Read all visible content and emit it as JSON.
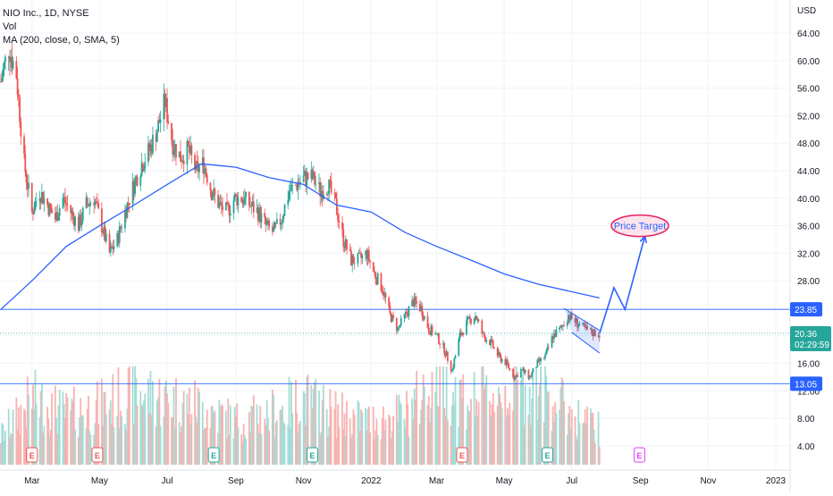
{
  "legend": {
    "symbol_line": "NIO Inc., 1D, NYSE",
    "vol_line": "Vol",
    "ma_line": "MA (200, close, 0, SMA, 5)"
  },
  "annotation": {
    "text": "Price Target"
  },
  "chart_data": {
    "type": "candlestick",
    "currency": "USD",
    "y_ticks": [
      4,
      8,
      12,
      16,
      20,
      24,
      28,
      32,
      36,
      40,
      44,
      48,
      52,
      56,
      60,
      64
    ],
    "y_tick_labels": [
      "4.00",
      "8.00",
      "12.00",
      "16.00",
      "20.00",
      "24.00",
      "28.00",
      "32.00",
      "36.00",
      "40.00",
      "44.00",
      "48.00",
      "52.00",
      "56.00",
      "60.00",
      "64.00"
    ],
    "x_ticks": [
      "Mar",
      "May",
      "Jul",
      "Sep",
      "Nov",
      "2022",
      "Mar",
      "May",
      "Jul",
      "Sep",
      "Nov",
      "2023"
    ],
    "horizontal_levels": [
      {
        "value": 23.85,
        "label": "23.85",
        "color": "#2962ff"
      },
      {
        "value": 13.05,
        "label": "13.05",
        "color": "#2962ff"
      }
    ],
    "last_price": {
      "value": 20.36,
      "label": "20.36",
      "countdown": "02:29:59",
      "color": "#26a69a"
    },
    "close_path": [
      [
        "2021-02-01",
        57
      ],
      [
        "2021-02-08",
        62
      ],
      [
        "2021-02-15",
        58
      ],
      [
        "2021-02-22",
        45
      ],
      [
        "2021-03-01",
        38
      ],
      [
        "2021-03-08",
        41
      ],
      [
        "2021-03-15",
        39
      ],
      [
        "2021-03-22",
        37
      ],
      [
        "2021-03-29",
        40
      ],
      [
        "2021-04-05",
        38
      ],
      [
        "2021-04-12",
        36
      ],
      [
        "2021-04-19",
        39
      ],
      [
        "2021-04-26",
        40
      ],
      [
        "2021-05-03",
        36
      ],
      [
        "2021-05-10",
        32
      ],
      [
        "2021-05-17",
        34
      ],
      [
        "2021-05-24",
        38
      ],
      [
        "2021-06-01",
        42
      ],
      [
        "2021-06-08",
        45
      ],
      [
        "2021-06-15",
        47
      ],
      [
        "2021-06-22",
        50
      ],
      [
        "2021-06-29",
        54
      ],
      [
        "2021-07-06",
        48
      ],
      [
        "2021-07-13",
        46
      ],
      [
        "2021-07-20",
        47
      ],
      [
        "2021-07-27",
        44
      ],
      [
        "2021-08-03",
        45
      ],
      [
        "2021-08-10",
        41
      ],
      [
        "2021-08-17",
        39
      ],
      [
        "2021-08-24",
        38
      ],
      [
        "2021-08-31",
        40
      ],
      [
        "2021-09-07",
        40
      ],
      [
        "2021-09-14",
        39
      ],
      [
        "2021-09-21",
        38
      ],
      [
        "2021-09-28",
        36
      ],
      [
        "2021-10-05",
        35
      ],
      [
        "2021-10-12",
        37
      ],
      [
        "2021-10-19",
        41
      ],
      [
        "2021-10-26",
        42
      ],
      [
        "2021-11-02",
        43
      ],
      [
        "2021-11-09",
        43
      ],
      [
        "2021-11-16",
        41
      ],
      [
        "2021-11-23",
        42
      ],
      [
        "2021-11-30",
        39
      ],
      [
        "2021-12-07",
        34
      ],
      [
        "2021-12-14",
        31
      ],
      [
        "2021-12-21",
        31
      ],
      [
        "2021-12-28",
        32
      ],
      [
        "2022-01-04",
        29
      ],
      [
        "2022-01-11",
        27
      ],
      [
        "2022-01-18",
        23
      ],
      [
        "2022-01-25",
        21
      ],
      [
        "2022-02-01",
        23
      ],
      [
        "2022-02-08",
        25
      ],
      [
        "2022-02-15",
        24
      ],
      [
        "2022-02-22",
        21
      ],
      [
        "2022-03-01",
        20
      ],
      [
        "2022-03-08",
        18
      ],
      [
        "2022-03-15",
        15
      ],
      [
        "2022-03-22",
        20
      ],
      [
        "2022-03-29",
        22
      ],
      [
        "2022-04-05",
        23
      ],
      [
        "2022-04-12",
        20
      ],
      [
        "2022-04-19",
        19
      ],
      [
        "2022-04-26",
        17
      ],
      [
        "2022-05-03",
        16
      ],
      [
        "2022-05-10",
        14
      ],
      [
        "2022-05-17",
        15
      ],
      [
        "2022-05-24",
        14
      ],
      [
        "2022-05-31",
        16
      ],
      [
        "2022-06-07",
        17
      ],
      [
        "2022-06-14",
        20
      ],
      [
        "2022-06-21",
        21
      ],
      [
        "2022-06-28",
        23
      ],
      [
        "2022-07-05",
        22
      ],
      [
        "2022-07-12",
        21
      ],
      [
        "2022-07-19",
        20.5
      ],
      [
        "2022-07-26",
        20.36
      ]
    ],
    "volume_path": [
      [
        "2021-02-01",
        4
      ],
      [
        "2021-03-01",
        9
      ],
      [
        "2021-04-01",
        7
      ],
      [
        "2021-05-01",
        8
      ],
      [
        "2021-06-01",
        10
      ],
      [
        "2021-07-01",
        9
      ],
      [
        "2021-08-01",
        8
      ],
      [
        "2021-09-01",
        6
      ],
      [
        "2021-10-01",
        7
      ],
      [
        "2021-11-01",
        9
      ],
      [
        "2021-12-01",
        7
      ],
      [
        "2022-01-01",
        6
      ],
      [
        "2022-02-01",
        7
      ],
      [
        "2022-03-01",
        12
      ],
      [
        "2022-04-01",
        9
      ],
      [
        "2022-05-01",
        10
      ],
      [
        "2022-06-01",
        11
      ],
      [
        "2022-07-01",
        7
      ],
      [
        "2022-07-26",
        5
      ]
    ],
    "sma_200": [
      [
        "2021-02-01",
        23.85
      ],
      [
        "2021-03-01",
        28
      ],
      [
        "2021-04-01",
        33
      ],
      [
        "2021-05-01",
        36
      ],
      [
        "2021-06-01",
        39
      ],
      [
        "2021-07-01",
        42
      ],
      [
        "2021-08-01",
        45
      ],
      [
        "2021-09-01",
        44.5
      ],
      [
        "2021-10-01",
        43
      ],
      [
        "2021-11-01",
        42
      ],
      [
        "2021-12-01",
        39
      ],
      [
        "2022-01-01",
        38
      ],
      [
        "2022-02-01",
        35
      ],
      [
        "2022-03-01",
        33
      ],
      [
        "2022-04-01",
        31
      ],
      [
        "2022-05-01",
        29
      ],
      [
        "2022-06-01",
        27.5
      ],
      [
        "2022-07-26",
        25.5
      ]
    ],
    "earnings": [
      "2021-03-01",
      "2021-04-29",
      "2021-08-12",
      "2021-11-09",
      "2022-03-24",
      "2022-06-09",
      "2022-08-31"
    ],
    "channel": {
      "upper": [
        [
          "2022-06-24",
          24
        ],
        [
          "2022-07-26",
          20.8
        ]
      ],
      "lower": [
        [
          "2022-07-01",
          20.5
        ],
        [
          "2022-07-26",
          17.5
        ]
      ]
    },
    "projection": [
      [
        "2022-07-26",
        20.36
      ],
      [
        "2022-08-08",
        27
      ],
      [
        "2022-08-18",
        23.85
      ],
      [
        "2022-09-05",
        34.5
      ]
    ],
    "target_value": 36
  }
}
